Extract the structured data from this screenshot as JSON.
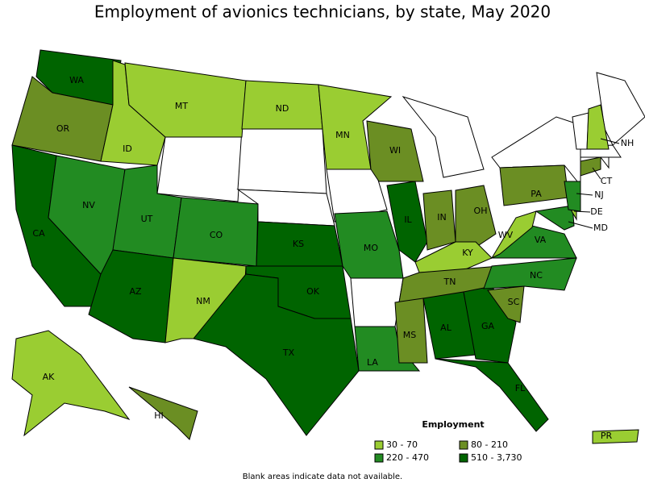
{
  "title": "Employment of avionics technicians, by state, May 2020",
  "legend": {
    "title": "Employment",
    "items": [
      {
        "label": "30 - 70",
        "color": "#9acd32"
      },
      {
        "label": "80 - 210",
        "color": "#6b8e23"
      },
      {
        "label": "220 - 470",
        "color": "#228b22"
      },
      {
        "label": "510 - 3,730",
        "color": "#006400"
      }
    ]
  },
  "states": [
    {
      "abbr": "WA",
      "class": 3
    },
    {
      "abbr": "OR",
      "class": 1
    },
    {
      "abbr": "CA",
      "class": 3
    },
    {
      "abbr": "NV",
      "class": 2
    },
    {
      "abbr": "ID",
      "class": 0
    },
    {
      "abbr": "MT",
      "class": 0
    },
    {
      "abbr": "UT",
      "class": 2
    },
    {
      "abbr": "CO",
      "class": 2
    },
    {
      "abbr": "AZ",
      "class": 3
    },
    {
      "abbr": "NM",
      "class": 0
    },
    {
      "abbr": "ND",
      "class": 0
    },
    {
      "abbr": "KS",
      "class": 3
    },
    {
      "abbr": "OK",
      "class": 3
    },
    {
      "abbr": "TX",
      "class": 3
    },
    {
      "abbr": "MN",
      "class": 0
    },
    {
      "abbr": "MO",
      "class": 2
    },
    {
      "abbr": "LA",
      "class": 2
    },
    {
      "abbr": "WI",
      "class": 1
    },
    {
      "abbr": "IL",
      "class": 3
    },
    {
      "abbr": "IN",
      "class": 1
    },
    {
      "abbr": "OH",
      "class": 1
    },
    {
      "abbr": "KY",
      "class": 0
    },
    {
      "abbr": "TN",
      "class": 1
    },
    {
      "abbr": "MS",
      "class": 1
    },
    {
      "abbr": "AL",
      "class": 3
    },
    {
      "abbr": "GA",
      "class": 3
    },
    {
      "abbr": "FL",
      "class": 3
    },
    {
      "abbr": "SC",
      "class": 1
    },
    {
      "abbr": "NC",
      "class": 2
    },
    {
      "abbr": "VA",
      "class": 2
    },
    {
      "abbr": "WV",
      "class": 0
    },
    {
      "abbr": "PA",
      "class": 1
    },
    {
      "abbr": "MD",
      "class": 2
    },
    {
      "abbr": "DE",
      "class": 0
    },
    {
      "abbr": "NJ",
      "class": 2
    },
    {
      "abbr": "CT",
      "class": 1
    },
    {
      "abbr": "NH",
      "class": 0
    },
    {
      "abbr": "AK",
      "class": 0
    },
    {
      "abbr": "HI",
      "class": 1
    },
    {
      "abbr": "PR",
      "class": 0
    }
  ],
  "note": "Blank areas indicate data not available."
}
